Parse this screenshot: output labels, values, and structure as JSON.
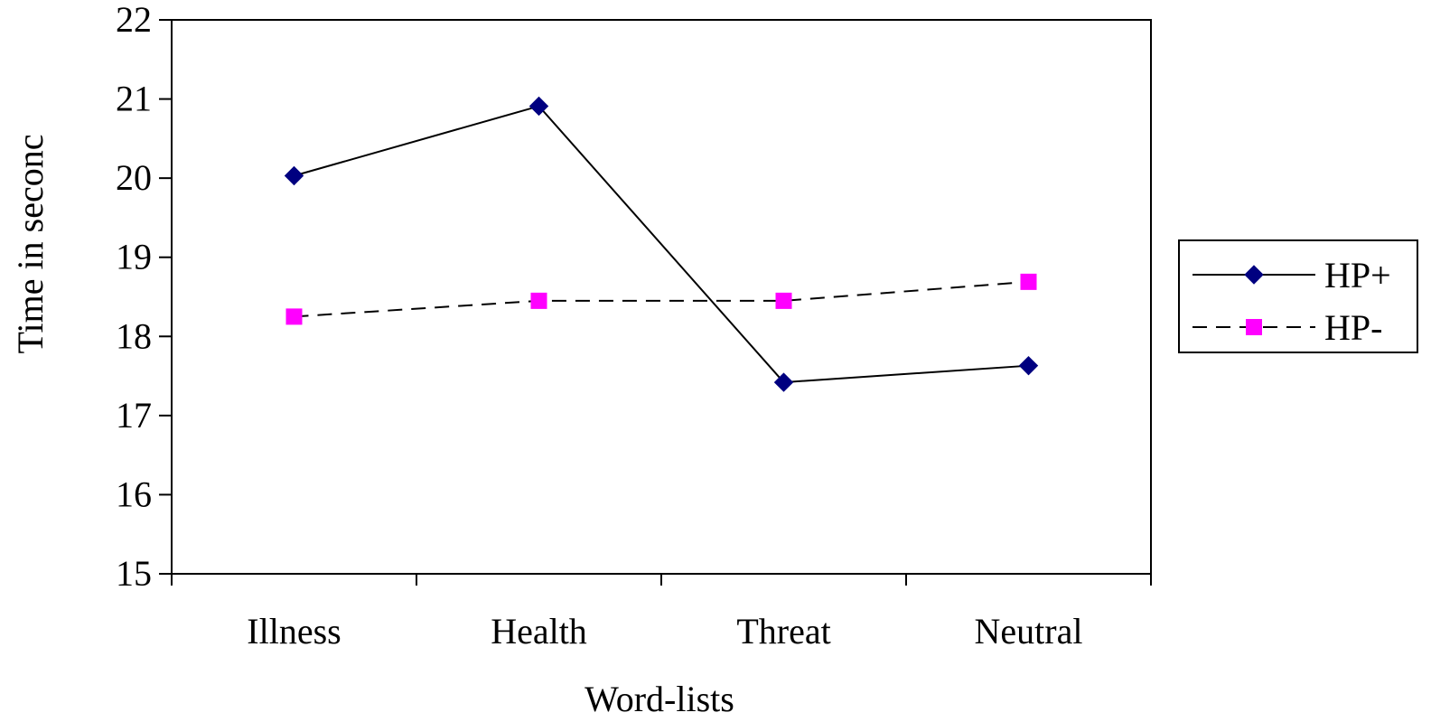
{
  "chart_data": {
    "type": "line",
    "title": "",
    "xlabel": "Word-lists",
    "ylabel": "Time in seconc",
    "categories": [
      "Illness",
      "Health",
      "Threat",
      "Neutral"
    ],
    "ylim": [
      15,
      22
    ],
    "yticks": [
      "15",
      "16",
      "17",
      "18",
      "19",
      "20",
      "21",
      "22"
    ],
    "grid": false,
    "legend_position": "right",
    "series": [
      {
        "name": "HP+",
        "values": [
          20.03,
          20.91,
          17.42,
          17.63
        ],
        "color": "#000080",
        "line_color": "#000000",
        "line_style": "solid",
        "marker": "diamond"
      },
      {
        "name": "HP-",
        "values": [
          18.25,
          18.45,
          18.45,
          18.69
        ],
        "color": "#ff00ff",
        "line_color": "#000000",
        "line_style": "dashed",
        "marker": "square"
      }
    ]
  }
}
